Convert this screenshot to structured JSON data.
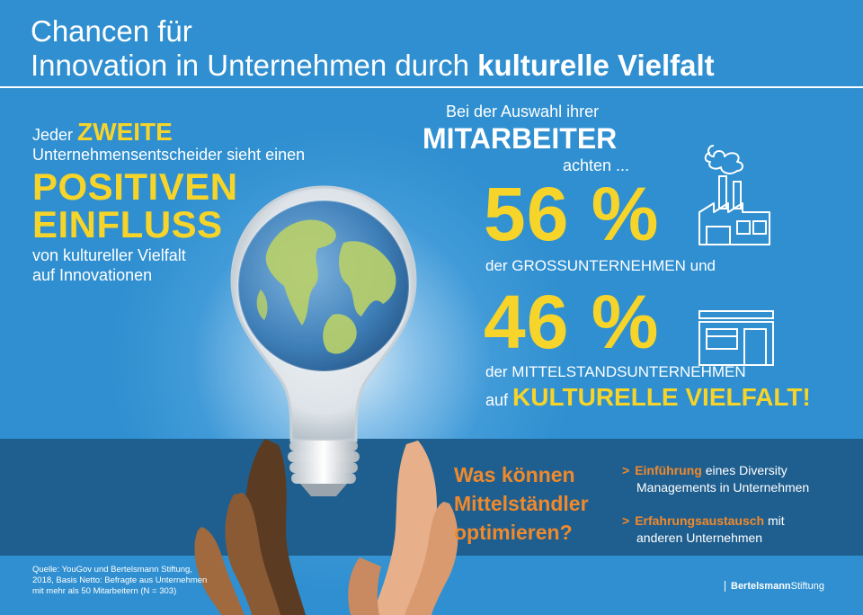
{
  "title": {
    "line1": "Chancen für",
    "line2_regular": "Innovation in Unternehmen durch ",
    "line2_bold": "kulturelle Vielfalt"
  },
  "left": {
    "jeder": "Jeder ",
    "zweite": "ZWEITE",
    "line2": "Unternehmensentscheider sieht einen",
    "positiven": "POSITIVEN",
    "einfluss": "EINFLUSS",
    "line5": "von kultureller Vielfalt",
    "line6": "auf Innovationen"
  },
  "right": {
    "intro": "Bei der Auswahl ihrer",
    "mitarbeiter": "MITARBEITER",
    "achten": "achten ...",
    "pct1": "56 %",
    "label1": "der GROSSUNTERNEHMEN und",
    "pct2": "46 %",
    "label2": "der MITTELSTANDSUNTERNEHMEN",
    "auf": "auf ",
    "kulturelle": "KULTURELLE VIELFALT!"
  },
  "icons": {
    "factory": "factory-icon",
    "shop": "shop-icon",
    "bulb": "lightbulb-globe-icon",
    "hands": "hands-icon"
  },
  "bottom": {
    "question_line1": "Was können",
    "question_line2": "Mittelständler",
    "question_line3": "optimieren?",
    "bullet1_chev": ">",
    "bullet1_hl": "Einführung",
    "bullet1_rest1": " eines Diversity",
    "bullet1_rest2": "Managements in Unternehmen",
    "bullet2_chev": ">",
    "bullet2_hl": "Erfahrungsaustausch",
    "bullet2_rest1": " mit",
    "bullet2_rest2": "anderen Unternehmen"
  },
  "source": {
    "line1": "Quelle: YouGov und Bertelsmann Stiftung,",
    "line2": "2018, Basis Netto: Befragte aus Unternehmen",
    "line3": "mit mehr als 50 Mitarbeitern (N = 303)"
  },
  "logo": {
    "bold": "Bertelsmann",
    "regular": "Stiftung"
  },
  "colors": {
    "background": "#2f8fd0",
    "band": "#1f5f8f",
    "yellow": "#f6d42a",
    "orange": "#f0892b",
    "white": "#ffffff"
  }
}
